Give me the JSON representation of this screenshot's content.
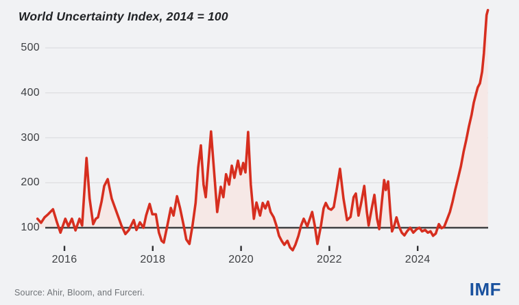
{
  "title": "World Uncertainty Index, 2014 = 100",
  "source": "Source: Ahir, Bloom, and Furceri.",
  "logo": "IMF",
  "colors": {
    "line_red": "#d62e1f",
    "area_pink": "#f6e8e6",
    "gridline": "#dcdde0",
    "baseline_dark": "#3e3f41",
    "tick_mark": "#2f3033",
    "imf_blue": "#19519e",
    "background": "#f1f2f4"
  },
  "chart_data": {
    "type": "area",
    "title": "World Uncertainty Index, 2014 = 100",
    "xlabel": "",
    "ylabel": "",
    "x_tick_labels": [
      "2016",
      "2018",
      "2020",
      "2022",
      "2024"
    ],
    "x_tick_years": [
      2016,
      2018,
      2020,
      2022,
      2024
    ],
    "y_tick_labels": [
      "100",
      "200",
      "300",
      "400",
      "500"
    ],
    "y_ticks": [
      100,
      200,
      300,
      400,
      500
    ],
    "xlim": [
      2015.39,
      2025.62
    ],
    "ylim": [
      40,
      590
    ],
    "baseline_value": 100,
    "grid": "horizontal-only",
    "legend": "none",
    "series": [
      {
        "name": "World Uncertainty Index (2014 = 100)",
        "points": [
          [
            2015.39,
            120
          ],
          [
            2015.47,
            111
          ],
          [
            2015.55,
            123
          ],
          [
            2015.63,
            130
          ],
          [
            2015.74,
            141
          ],
          [
            2015.83,
            112
          ],
          [
            2015.91,
            89
          ],
          [
            2016.02,
            120
          ],
          [
            2016.09,
            103
          ],
          [
            2016.17,
            120
          ],
          [
            2016.25,
            94
          ],
          [
            2016.34,
            120
          ],
          [
            2016.4,
            105
          ],
          [
            2016.5,
            255
          ],
          [
            2016.57,
            165
          ],
          [
            2016.65,
            108
          ],
          [
            2016.71,
            120
          ],
          [
            2016.76,
            123
          ],
          [
            2016.84,
            158
          ],
          [
            2016.9,
            193
          ],
          [
            2016.98,
            208
          ],
          [
            2017.07,
            165
          ],
          [
            2017.18,
            135
          ],
          [
            2017.29,
            105
          ],
          [
            2017.38,
            86
          ],
          [
            2017.46,
            95
          ],
          [
            2017.57,
            117
          ],
          [
            2017.63,
            95
          ],
          [
            2017.71,
            112
          ],
          [
            2017.79,
            100
          ],
          [
            2017.85,
            127
          ],
          [
            2017.93,
            153
          ],
          [
            2017.99,
            130
          ],
          [
            2018.07,
            130
          ],
          [
            2018.14,
            89
          ],
          [
            2018.2,
            71
          ],
          [
            2018.25,
            67
          ],
          [
            2018.33,
            105
          ],
          [
            2018.41,
            144
          ],
          [
            2018.47,
            127
          ],
          [
            2018.55,
            170
          ],
          [
            2018.62,
            143
          ],
          [
            2018.7,
            105
          ],
          [
            2018.76,
            74
          ],
          [
            2018.83,
            64
          ],
          [
            2018.9,
            105
          ],
          [
            2018.97,
            155
          ],
          [
            2019.03,
            234
          ],
          [
            2019.09,
            283
          ],
          [
            2019.15,
            196
          ],
          [
            2019.2,
            168
          ],
          [
            2019.26,
            241
          ],
          [
            2019.32,
            314
          ],
          [
            2019.4,
            211
          ],
          [
            2019.46,
            135
          ],
          [
            2019.54,
            191
          ],
          [
            2019.6,
            168
          ],
          [
            2019.66,
            219
          ],
          [
            2019.73,
            196
          ],
          [
            2019.79,
            238
          ],
          [
            2019.85,
            211
          ],
          [
            2019.93,
            249
          ],
          [
            2019.99,
            219
          ],
          [
            2020.05,
            244
          ],
          [
            2020.1,
            223
          ],
          [
            2020.16,
            313
          ],
          [
            2020.22,
            196
          ],
          [
            2020.29,
            120
          ],
          [
            2020.35,
            156
          ],
          [
            2020.43,
            127
          ],
          [
            2020.49,
            155
          ],
          [
            2020.55,
            143
          ],
          [
            2020.61,
            158
          ],
          [
            2020.67,
            135
          ],
          [
            2020.74,
            123
          ],
          [
            2020.8,
            105
          ],
          [
            2020.86,
            82
          ],
          [
            2020.92,
            71
          ],
          [
            2020.98,
            62
          ],
          [
            2021.05,
            71
          ],
          [
            2021.11,
            56
          ],
          [
            2021.17,
            50
          ],
          [
            2021.23,
            62
          ],
          [
            2021.3,
            82
          ],
          [
            2021.36,
            105
          ],
          [
            2021.42,
            120
          ],
          [
            2021.5,
            103
          ],
          [
            2021.61,
            135
          ],
          [
            2021.67,
            105
          ],
          [
            2021.73,
            64
          ],
          [
            2021.81,
            105
          ],
          [
            2021.87,
            143
          ],
          [
            2021.92,
            155
          ],
          [
            2021.98,
            143
          ],
          [
            2022.04,
            140
          ],
          [
            2022.1,
            146
          ],
          [
            2022.16,
            181
          ],
          [
            2022.24,
            231
          ],
          [
            2022.32,
            165
          ],
          [
            2022.4,
            117
          ],
          [
            2022.48,
            124
          ],
          [
            2022.55,
            168
          ],
          [
            2022.6,
            176
          ],
          [
            2022.66,
            127
          ],
          [
            2022.72,
            155
          ],
          [
            2022.79,
            193
          ],
          [
            2022.85,
            135
          ],
          [
            2022.89,
            105
          ],
          [
            2022.96,
            143
          ],
          [
            2023.02,
            173
          ],
          [
            2023.08,
            120
          ],
          [
            2023.13,
            97
          ],
          [
            2023.19,
            158
          ],
          [
            2023.24,
            206
          ],
          [
            2023.28,
            184
          ],
          [
            2023.33,
            203
          ],
          [
            2023.38,
            135
          ],
          [
            2023.42,
            92
          ],
          [
            2023.47,
            105
          ],
          [
            2023.52,
            123
          ],
          [
            2023.58,
            102
          ],
          [
            2023.64,
            89
          ],
          [
            2023.7,
            83
          ],
          [
            2023.76,
            92
          ],
          [
            2023.83,
            100
          ],
          [
            2023.9,
            89
          ],
          [
            2023.98,
            97
          ],
          [
            2024.04,
            100
          ],
          [
            2024.1,
            92
          ],
          [
            2024.17,
            95
          ],
          [
            2024.23,
            89
          ],
          [
            2024.29,
            92
          ],
          [
            2024.35,
            82
          ],
          [
            2024.41,
            87
          ],
          [
            2024.48,
            108
          ],
          [
            2024.54,
            99
          ],
          [
            2024.6,
            102
          ],
          [
            2024.66,
            117
          ],
          [
            2024.73,
            135
          ],
          [
            2024.79,
            158
          ],
          [
            2024.85,
            184
          ],
          [
            2024.91,
            208
          ],
          [
            2024.98,
            237
          ],
          [
            2025.04,
            269
          ],
          [
            2025.1,
            295
          ],
          [
            2025.16,
            325
          ],
          [
            2025.22,
            351
          ],
          [
            2025.27,
            378
          ],
          [
            2025.32,
            397
          ],
          [
            2025.36,
            412
          ],
          [
            2025.41,
            421
          ],
          [
            2025.46,
            447
          ],
          [
            2025.5,
            488
          ],
          [
            2025.53,
            530
          ],
          [
            2025.56,
            573
          ],
          [
            2025.59,
            584
          ]
        ]
      }
    ]
  }
}
